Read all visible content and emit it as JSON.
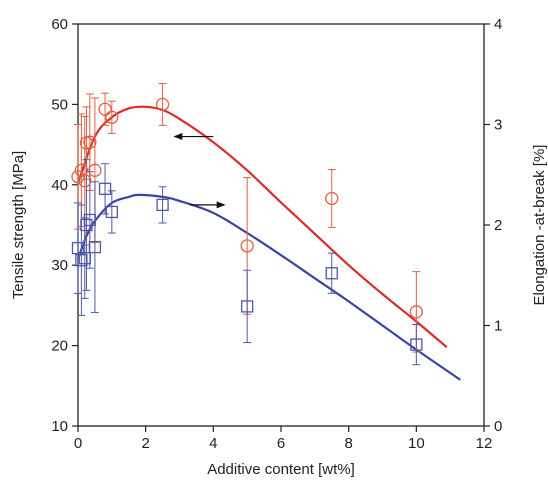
{
  "chart_data": {
    "type": "scatter",
    "xlabel": "Additive content [wt%]",
    "ylabel": "Tensile strength [MPa]",
    "y2label": "Elongation -at-break [%]",
    "xlim": [
      0,
      12
    ],
    "ylim": [
      10,
      60
    ],
    "y2lim": [
      0,
      4
    ],
    "x_ticks": [
      0,
      2,
      4,
      6,
      8,
      10,
      12
    ],
    "y_ticks": [
      10,
      20,
      30,
      40,
      50,
      60
    ],
    "y2_ticks": [
      0,
      1,
      2,
      3,
      4
    ],
    "grid": false,
    "legend": "none",
    "series": [
      {
        "axis": "left",
        "marker": "circle",
        "color": "#e06040",
        "points": [
          {
            "x": 0.0,
            "y": 41.0,
            "err": 6.5
          },
          {
            "x": 0.1,
            "y": 41.8,
            "err": 7.0
          },
          {
            "x": 0.2,
            "y": 40.5,
            "err": 8.0
          },
          {
            "x": 0.25,
            "y": 45.2,
            "err": 4.5
          },
          {
            "x": 0.35,
            "y": 45.3,
            "err": 6.0
          },
          {
            "x": 0.5,
            "y": 41.8,
            "err": 9.0
          },
          {
            "x": 0.8,
            "y": 49.4,
            "err": 2.0
          },
          {
            "x": 1.0,
            "y": 48.4,
            "err": 2.0
          },
          {
            "x": 2.5,
            "y": 50.0,
            "err": 2.6
          },
          {
            "x": 5.0,
            "y": 32.4,
            "err": 8.5
          },
          {
            "x": 7.5,
            "y": 38.3,
            "err": 3.6
          },
          {
            "x": 10.0,
            "y": 24.2,
            "err": 5.0
          }
        ],
        "fit": [
          [
            0.0,
            40.2
          ],
          [
            0.5,
            46.0
          ],
          [
            1.0,
            48.4
          ],
          [
            1.5,
            49.5
          ],
          [
            2.0,
            49.7
          ],
          [
            2.5,
            49.3
          ],
          [
            3.0,
            48.2
          ],
          [
            4.0,
            45.3
          ],
          [
            5.0,
            41.8
          ],
          [
            6.0,
            37.8
          ],
          [
            7.0,
            33.9
          ],
          [
            8.0,
            30.0
          ],
          [
            9.0,
            26.4
          ],
          [
            10.0,
            23.0
          ],
          [
            10.9,
            19.8
          ]
        ]
      },
      {
        "axis": "right",
        "marker": "square",
        "color": "#5058a8",
        "points": [
          {
            "x": 0.0,
            "y": 1.77,
            "err": 0.45
          },
          {
            "x": 0.1,
            "y": 1.65,
            "err": 0.55
          },
          {
            "x": 0.2,
            "y": 1.67,
            "err": 0.4
          },
          {
            "x": 0.25,
            "y": 2.0,
            "err": 0.65
          },
          {
            "x": 0.35,
            "y": 2.05,
            "err": 0.48
          },
          {
            "x": 0.5,
            "y": 1.78,
            "err": 0.65
          },
          {
            "x": 0.8,
            "y": 2.36,
            "err": 0.25
          },
          {
            "x": 1.0,
            "y": 2.13,
            "err": 0.21
          },
          {
            "x": 2.5,
            "y": 2.2,
            "err": 0.18
          },
          {
            "x": 5.0,
            "y": 1.19,
            "err": 0.36
          },
          {
            "x": 7.5,
            "y": 1.52,
            "err": 0.2
          },
          {
            "x": 10.0,
            "y": 0.81,
            "err": 0.2
          }
        ],
        "fit": [
          [
            0.0,
            1.66
          ],
          [
            0.25,
            1.89
          ],
          [
            0.5,
            2.04
          ],
          [
            1.0,
            2.22
          ],
          [
            1.5,
            2.28
          ],
          [
            1.8,
            2.3
          ],
          [
            2.5,
            2.28
          ],
          [
            3.0,
            2.24
          ],
          [
            4.0,
            2.12
          ],
          [
            5.0,
            1.92
          ],
          [
            6.0,
            1.7
          ],
          [
            7.0,
            1.47
          ],
          [
            8.0,
            1.24
          ],
          [
            9.0,
            1.0
          ],
          [
            10.0,
            0.76
          ],
          [
            11.3,
            0.46
          ]
        ]
      }
    ],
    "arrows": [
      {
        "points_to": "left",
        "from_x": 4.0,
        "y": 46.0
      },
      {
        "points_to": "right",
        "from_x": 3.3,
        "y2": 2.2
      }
    ]
  }
}
